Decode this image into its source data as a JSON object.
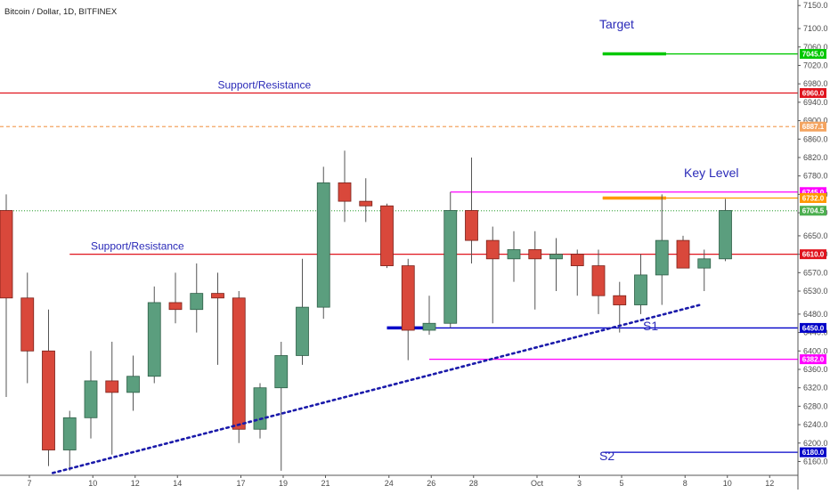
{
  "chart_data": {
    "type": "candlestick",
    "title": "Bitcoin / Dollar, 1D, BITFINEX",
    "ylim": [
      6130,
      7162
    ],
    "y_ticks": [
      7150,
      7100,
      7060,
      7020,
      6980,
      6940,
      6900,
      6860,
      6820,
      6780,
      6740,
      6700,
      6650,
      6610,
      6570,
      6530,
      6480,
      6440,
      6400,
      6360,
      6320,
      6280,
      6240,
      6200,
      6160
    ],
    "x_ticks": [
      {
        "label": "7",
        "index": 0
      },
      {
        "label": "10",
        "index": 3
      },
      {
        "label": "12",
        "index": 5
      },
      {
        "label": "14",
        "index": 7
      },
      {
        "label": "17",
        "index": 10
      },
      {
        "label": "19",
        "index": 12
      },
      {
        "label": "21",
        "index": 14
      },
      {
        "label": "24",
        "index": 17
      },
      {
        "label": "26",
        "index": 19
      },
      {
        "label": "28",
        "index": 21
      },
      {
        "label": "Oct",
        "index": 24
      },
      {
        "label": "3",
        "index": 26
      },
      {
        "label": "5",
        "index": 28
      },
      {
        "label": "8",
        "index": 31
      },
      {
        "label": "10",
        "index": 33
      },
      {
        "label": "12",
        "index": 35
      }
    ],
    "candles": [
      {
        "o": 6705,
        "h": 6740,
        "l": 6300,
        "c": 6515
      },
      {
        "o": 6515,
        "h": 6570,
        "l": 6330,
        "c": 6400
      },
      {
        "o": 6400,
        "h": 6490,
        "l": 6150,
        "c": 6185
      },
      {
        "o": 6185,
        "h": 6270,
        "l": 6140,
        "c": 6255
      },
      {
        "o": 6255,
        "h": 6400,
        "l": 6210,
        "c": 6335
      },
      {
        "o": 6335,
        "h": 6420,
        "l": 6175,
        "c": 6310
      },
      {
        "o": 6310,
        "h": 6390,
        "l": 6270,
        "c": 6345
      },
      {
        "o": 6345,
        "h": 6540,
        "l": 6330,
        "c": 6505
      },
      {
        "o": 6505,
        "h": 6570,
        "l": 6460,
        "c": 6490
      },
      {
        "o": 6490,
        "h": 6590,
        "l": 6440,
        "c": 6525
      },
      {
        "o": 6525,
        "h": 6570,
        "l": 6370,
        "c": 6515
      },
      {
        "o": 6515,
        "h": 6530,
        "l": 6200,
        "c": 6230
      },
      {
        "o": 6230,
        "h": 6330,
        "l": 6210,
        "c": 6320
      },
      {
        "o": 6320,
        "h": 6420,
        "l": 6140,
        "c": 6390
      },
      {
        "o": 6390,
        "h": 6600,
        "l": 6370,
        "c": 6495
      },
      {
        "o": 6495,
        "h": 6800,
        "l": 6470,
        "c": 6765
      },
      {
        "o": 6765,
        "h": 6835,
        "l": 6680,
        "c": 6725
      },
      {
        "o": 6725,
        "h": 6775,
        "l": 6680,
        "c": 6715
      },
      {
        "o": 6715,
        "h": 6720,
        "l": 6580,
        "c": 6585
      },
      {
        "o": 6585,
        "h": 6600,
        "l": 6380,
        "c": 6445
      },
      {
        "o": 6445,
        "h": 6520,
        "l": 6435,
        "c": 6460
      },
      {
        "o": 6460,
        "h": 6745,
        "l": 6450,
        "c": 6705
      },
      {
        "o": 6705,
        "h": 6820,
        "l": 6590,
        "c": 6640
      },
      {
        "o": 6640,
        "h": 6670,
        "l": 6460,
        "c": 6600
      },
      {
        "o": 6600,
        "h": 6660,
        "l": 6550,
        "c": 6620
      },
      {
        "o": 6620,
        "h": 6660,
        "l": 6490,
        "c": 6600
      },
      {
        "o": 6600,
        "h": 6645,
        "l": 6530,
        "c": 6610
      },
      {
        "o": 6610,
        "h": 6620,
        "l": 6520,
        "c": 6585
      },
      {
        "o": 6585,
        "h": 6620,
        "l": 6480,
        "c": 6520
      },
      {
        "o": 6520,
        "h": 6550,
        "l": 6440,
        "c": 6500
      },
      {
        "o": 6500,
        "h": 6610,
        "l": 6480,
        "c": 6565
      },
      {
        "o": 6565,
        "h": 6740,
        "l": 6500,
        "c": 6640
      },
      {
        "o": 6640,
        "h": 6650,
        "l": 6590,
        "c": 6580
      },
      {
        "o": 6580,
        "h": 6620,
        "l": 6530,
        "c": 6600
      },
      {
        "o": 6600,
        "h": 6730,
        "l": 6595,
        "c": 6705
      }
    ],
    "horizontal_lines": [
      {
        "name": "Target",
        "value": 7045.0,
        "label": "7045.0",
        "color": "#00c800",
        "start_index": 28.2,
        "end_index": 37.5,
        "thick_end_index": 31.2,
        "text": "Target"
      },
      {
        "name": "Support/Resistance",
        "value": 6960.0,
        "label": "6960.0",
        "color": "#e0141e",
        "start_index": -0.5,
        "end_index": 37.5,
        "text": "Support/Resistance",
        "text_index": 10
      },
      {
        "name": "6887.1",
        "value": 6887.1,
        "label": "6887.1",
        "color": "#f4a460",
        "dashed": true,
        "start_index": -0.5,
        "end_index": 37.5
      },
      {
        "name": "6745.0",
        "value": 6745.0,
        "label": "6745.0",
        "color": "#ff00ff",
        "start_index": 21,
        "end_index": 37.5
      },
      {
        "name": "Key Level",
        "value": 6732.0,
        "label": "6732.0",
        "color": "#ff9800",
        "start_index": 28.2,
        "end_index": 37.5,
        "thick_end_index": 31.2,
        "text": "Key Level"
      },
      {
        "name": "6704.5",
        "value": 6704.5,
        "label": "6704.5",
        "color": "#4caf50",
        "dotted": true,
        "start_index": -0.5,
        "end_index": 37.5
      },
      {
        "name": "Support/Resistance",
        "value": 6610.0,
        "label": "6610.0",
        "color": "#e0141e",
        "start_index": 3,
        "end_index": 37.5,
        "text": "Support/Resistance",
        "text_index": 4
      },
      {
        "name": "S1",
        "value": 6450.0,
        "label": "6450.0",
        "color": "#0000c8",
        "start_index": 18,
        "end_index": 37.5,
        "thick_end_index": 20,
        "text": "S1"
      },
      {
        "name": "6382.0",
        "value": 6382.0,
        "label": "6382.0",
        "color": "#ff00ff",
        "start_index": 20,
        "end_index": 37.5
      },
      {
        "name": "S2",
        "value": 6180.0,
        "label": "6180.0",
        "color": "#0000c8",
        "start_index": 28.2,
        "end_index": 37.5,
        "text": "S2"
      }
    ],
    "trendline": {
      "from": {
        "index": 2.2,
        "value": 6135
      },
      "to": {
        "index": 32.8,
        "value": 6500
      },
      "color": "#1a1aaa",
      "dotted": true
    }
  }
}
